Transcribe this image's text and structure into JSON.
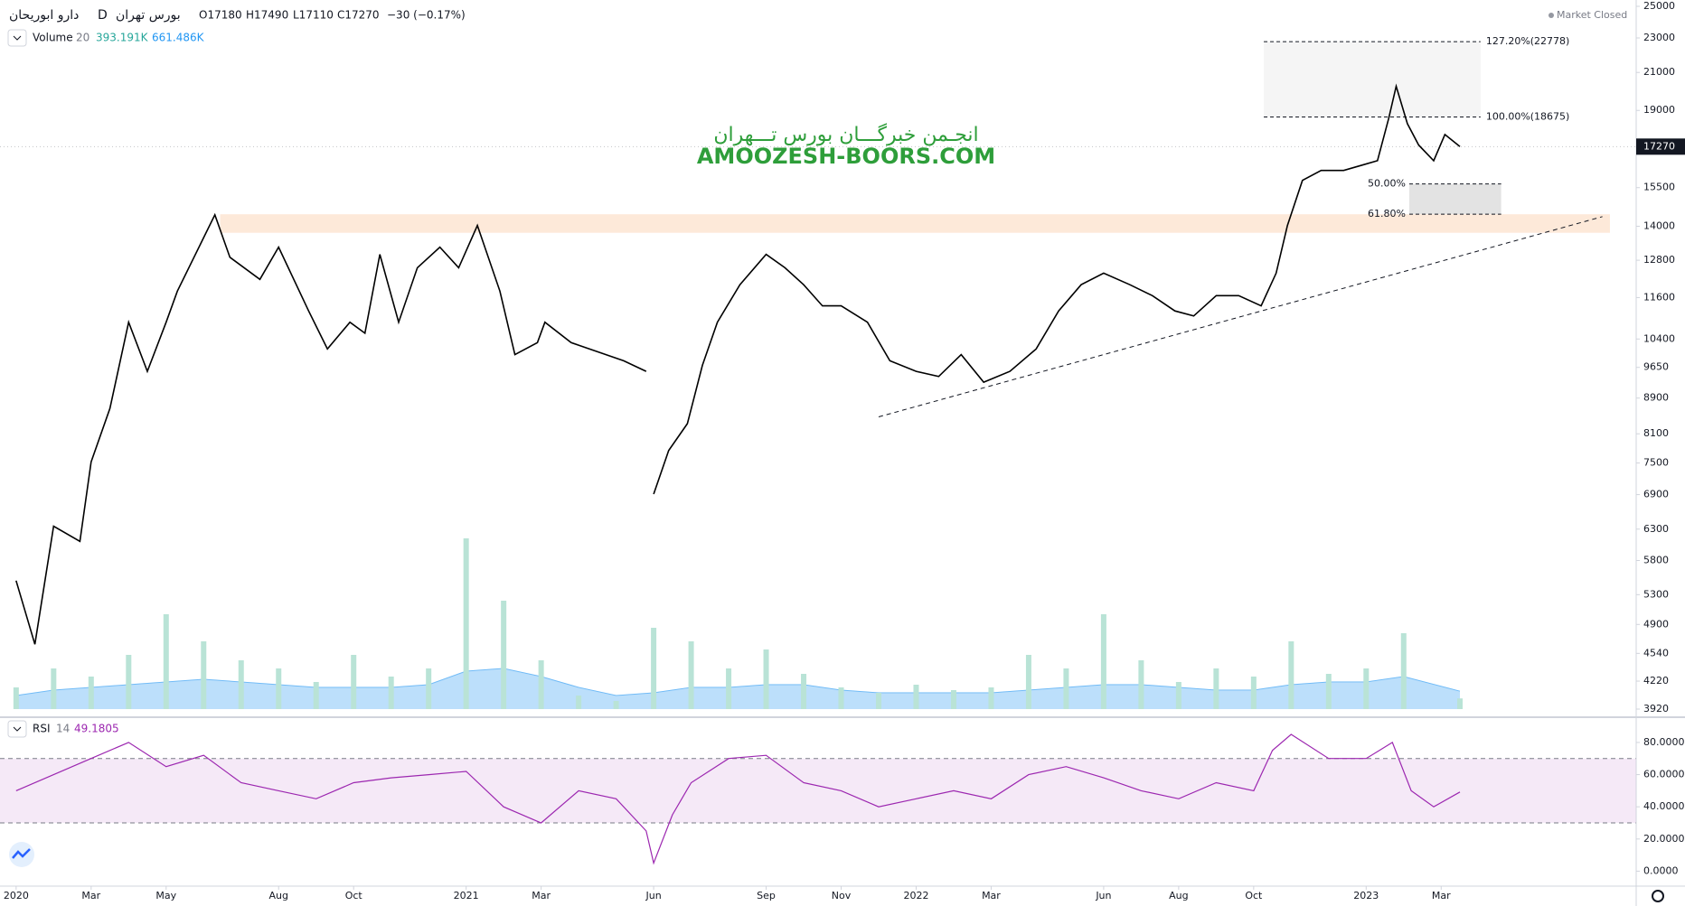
{
  "header": {
    "symbol": "دارو ابوریحان",
    "interval": "D",
    "exchange": "بورس تهران",
    "open": "O17180",
    "high": "H17490",
    "low": "L17110",
    "close": "C17270",
    "change": "−30 (−0.17%)",
    "status": "Market Closed"
  },
  "watermark": {
    "persian": "انجـمن خبرگـــان بورس تـــهران",
    "latin": "AMOOZESH-BOORS.COM"
  },
  "chart_data": [
    {
      "type": "line",
      "log_scale": true,
      "color": "#000000",
      "xlim": [
        -0.43,
        43.2
      ],
      "xticks": [
        {
          "value": 0,
          "label": "2020"
        },
        {
          "value": 2,
          "label": "Mar"
        },
        {
          "value": 4,
          "label": "May"
        },
        {
          "value": 7,
          "label": "Aug"
        },
        {
          "value": 9,
          "label": "Oct"
        },
        {
          "value": 12,
          "label": "2021"
        },
        {
          "value": 14,
          "label": "Mar"
        },
        {
          "value": 17,
          "label": "Jun"
        },
        {
          "value": 20,
          "label": "Sep"
        },
        {
          "value": 22,
          "label": "Nov"
        },
        {
          "value": 24,
          "label": "2022"
        },
        {
          "value": 26,
          "label": "Mar"
        },
        {
          "value": 29,
          "label": "Jun"
        },
        {
          "value": 31,
          "label": "Aug"
        },
        {
          "value": 33,
          "label": "Oct"
        },
        {
          "value": 36,
          "label": "2023"
        },
        {
          "value": 38,
          "label": "Mar"
        }
      ],
      "ylim": [
        3920,
        25420
      ],
      "yticks": [
        25000,
        23000,
        21000,
        19000,
        15500,
        14000,
        12800,
        11600,
        10400,
        9650,
        8900,
        8100,
        7500,
        6900,
        6300,
        5800,
        5300,
        4900,
        4540,
        4220,
        3920
      ],
      "x": [
        0,
        0.5,
        1,
        1.7,
        2,
        2.5,
        3,
        3.5,
        4,
        4.3,
        5.3,
        5.7,
        6.5,
        7,
        7.8,
        8.3,
        8.9,
        9.3,
        9.7,
        10.2,
        10.7,
        11.3,
        11.8,
        12.3,
        12.9,
        13.3,
        13.9,
        14.1,
        14.8,
        16.2,
        16.8,
        16.9,
        17.0,
        17.4,
        17.9,
        18.3,
        18.7,
        19.3,
        20,
        20.5,
        21,
        21.5,
        22,
        22.7,
        23.3,
        24,
        24.6,
        25.2,
        25.8,
        26.5,
        27.2,
        27.8,
        28.4,
        29,
        29.7,
        30.3,
        30.9,
        31.4,
        32,
        32.6,
        33.2,
        33.6,
        33.9,
        34.3,
        34.8,
        35.4,
        35.9,
        36.3,
        36.6,
        36.8,
        37.1,
        37.4,
        37.8,
        38.1,
        38.5
      ],
      "values": [
        5500,
        4650,
        6350,
        6100,
        7520,
        8660,
        10870,
        9550,
        10870,
        11800,
        14430,
        12900,
        12170,
        13250,
        11200,
        10130,
        10870,
        10560,
        13000,
        10870,
        12550,
        13250,
        12550,
        14030,
        11800,
        9980,
        10300,
        10870,
        10300,
        9820,
        9550,
        null,
        6910,
        7750,
        8320,
        9700,
        10870,
        12000,
        13000,
        12550,
        12000,
        11350,
        11350,
        10870,
        9820,
        9550,
        9420,
        9980,
        9280,
        9550,
        10130,
        11200,
        12000,
        12370,
        12000,
        11660,
        11200,
        11050,
        11660,
        11660,
        11350,
        12370,
        14030,
        15800,
        16220,
        16220,
        16450,
        16640,
        18600,
        20250,
        18350,
        17340,
        16640,
        17830,
        17270
      ],
      "last_price": 17270,
      "zone": {
        "x": [
          5.44,
          42.5
        ],
        "values": [
          13760,
          14450
        ],
        "color": "#fde9d9"
      },
      "trendline": {
        "x": [
          23.0,
          42.3
        ],
        "values": [
          8470,
          14360
        ]
      },
      "fib_boxes": [
        {
          "x": [
            33.27,
            39.05
          ],
          "color": "#f5f5f5",
          "levels": [
            {
              "value": 22778,
              "label": "127.20%(22778)"
            },
            {
              "value": 18675,
              "label": "100.00%(18675)"
            }
          ]
        },
        {
          "x": [
            37.15,
            39.6
          ],
          "color": "#e3e3e3",
          "levels": [
            {
              "value": 15650,
              "label": "50.00%"
            },
            {
              "value": 14450,
              "label": "61.80%"
            }
          ]
        }
      ]
    },
    {
      "type": "bar",
      "name": "Volume",
      "length": 20,
      "value_label": "393.191K",
      "ma_label": "661.486K",
      "color": "#b9e3d6",
      "ma_color": "#90caf9",
      "ylim": [
        0,
        11000000
      ],
      "x": [
        0,
        1,
        2,
        3,
        4,
        5,
        6,
        7,
        8,
        9,
        10,
        11,
        12,
        13,
        14,
        15,
        16,
        17,
        18,
        19,
        20,
        21,
        22,
        23,
        24,
        25,
        26,
        27,
        28,
        29,
        30,
        31,
        32,
        33,
        34,
        35,
        36,
        37,
        38.5
      ],
      "values": [
        800000,
        1500000,
        1200000,
        2000000,
        3500000,
        2500000,
        1800000,
        1500000,
        1000000,
        2000000,
        1200000,
        1500000,
        6300000,
        4000000,
        1800000,
        500000,
        300000,
        3000000,
        2500000,
        1500000,
        2200000,
        1300000,
        800000,
        600000,
        900000,
        700000,
        800000,
        2000000,
        1500000,
        3500000,
        1800000,
        1000000,
        1500000,
        1200000,
        2500000,
        1300000,
        1500000,
        2800000,
        393191
      ],
      "ma_values": [
        500000,
        700000,
        800000,
        900000,
        1000000,
        1100000,
        1000000,
        900000,
        800000,
        800000,
        800000,
        900000,
        1400000,
        1500000,
        1200000,
        800000,
        500000,
        600000,
        800000,
        800000,
        900000,
        900000,
        700000,
        600000,
        600000,
        600000,
        600000,
        700000,
        800000,
        900000,
        900000,
        800000,
        700000,
        700000,
        900000,
        1000000,
        1000000,
        1200000,
        661486
      ]
    },
    {
      "type": "line",
      "name": "RSI",
      "length": 14,
      "last_value": 49.1805,
      "color": "#9c27b0",
      "ylim": [
        -9.3,
        94
      ],
      "yticks": [
        {
          "value": 80,
          "label": "80.0000"
        },
        {
          "value": 60,
          "label": "60.0000"
        },
        {
          "value": 40,
          "label": "40.0000"
        },
        {
          "value": 20,
          "label": "20.0000"
        },
        {
          "value": 0,
          "label": "0.0000"
        }
      ],
      "band": [
        30,
        70
      ],
      "x": [
        0,
        1,
        2,
        3,
        4,
        5,
        6,
        7,
        8,
        9,
        10,
        11,
        12,
        13,
        14,
        15,
        16,
        16.8,
        17,
        17.5,
        18,
        19,
        20,
        21,
        22,
        23,
        24,
        25,
        26,
        27,
        28,
        29,
        30,
        31,
        32,
        33,
        33.5,
        34,
        35,
        36,
        36.7,
        37.2,
        37.8,
        38.5
      ],
      "values": [
        50,
        60,
        70,
        80,
        65,
        72,
        55,
        50,
        45,
        55,
        58,
        60,
        62,
        40,
        30,
        50,
        45,
        25,
        5,
        35,
        55,
        70,
        72,
        55,
        50,
        40,
        45,
        50,
        45,
        60,
        65,
        58,
        50,
        45,
        55,
        50,
        75,
        85,
        70,
        70,
        80,
        50,
        40,
        49.1805
      ]
    }
  ]
}
